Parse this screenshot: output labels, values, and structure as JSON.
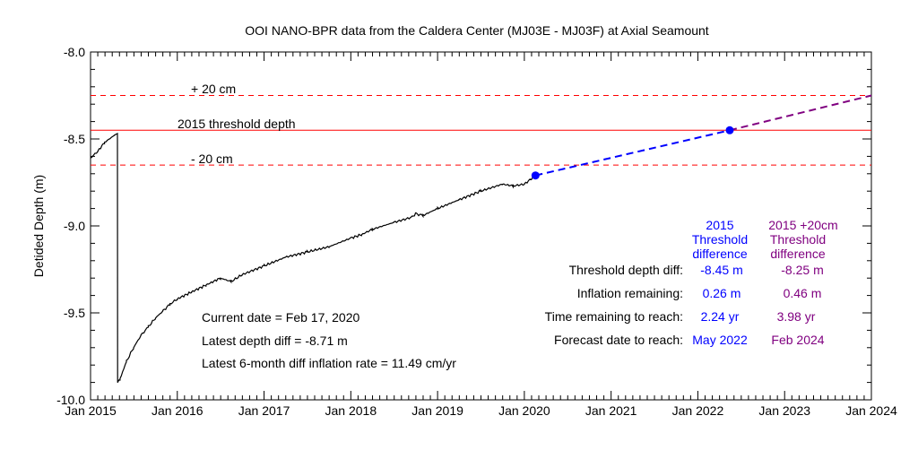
{
  "colors": {
    "data": "#000000",
    "threshold": "#ff0000",
    "forecast_2015": "#0000ff",
    "forecast_plus20": "#800080"
  },
  "chart_data": {
    "type": "line",
    "title": "OOI NANO-BPR data from the Caldera Center (MJ03E - MJ03F) at Axial Seamount",
    "ylabel": "Detided Depth (m)",
    "xlabel": "",
    "xlim": [
      "2015-01-01",
      "2024-01-01"
    ],
    "ylim": [
      -10.0,
      -8.0
    ],
    "y_reversed": false,
    "x_ticks": [
      "Jan 2015",
      "Jan 2016",
      "Jan 2017",
      "Jan 2018",
      "Jan 2019",
      "Jan 2020",
      "Jan 2021",
      "Jan 2022",
      "Jan 2023",
      "Jan 2024"
    ],
    "y_ticks": [
      "-8.0",
      "-8.5",
      "-9.0",
      "-9.5",
      "-10.0"
    ],
    "y_tick_values": [
      -8.0,
      -8.5,
      -9.0,
      -9.5,
      -10.0
    ],
    "grid": false,
    "reference_lines": [
      {
        "y": -8.25,
        "style": "dashed",
        "color": "#ff0000",
        "label": "+ 20 cm"
      },
      {
        "y": -8.45,
        "style": "solid",
        "color": "#ff0000",
        "label": "2015 threshold depth"
      },
      {
        "y": -8.65,
        "style": "dashed",
        "color": "#ff0000",
        "label": "- 20 cm"
      }
    ],
    "series": [
      {
        "color": "#000000",
        "style": "solid",
        "points": [
          [
            "2015-01-01",
            -8.61
          ],
          [
            "2015-02-01",
            -8.57
          ],
          [
            "2015-03-01",
            -8.52
          ],
          [
            "2015-04-10",
            -8.48
          ],
          [
            "2015-04-24",
            -8.47
          ],
          [
            "2015-04-25",
            -9.9
          ],
          [
            "2015-05-05",
            -9.88
          ],
          [
            "2015-06-01",
            -9.78
          ],
          [
            "2015-07-01",
            -9.7
          ],
          [
            "2015-08-01",
            -9.63
          ],
          [
            "2015-09-01",
            -9.58
          ],
          [
            "2015-10-01",
            -9.53
          ],
          [
            "2015-11-01",
            -9.49
          ],
          [
            "2015-12-01",
            -9.45
          ],
          [
            "2016-01-01",
            -9.42
          ],
          [
            "2016-03-01",
            -9.38
          ],
          [
            "2016-05-01",
            -9.34
          ],
          [
            "2016-07-01",
            -9.3
          ],
          [
            "2016-08-15",
            -9.32
          ],
          [
            "2016-10-01",
            -9.28
          ],
          [
            "2017-01-01",
            -9.23
          ],
          [
            "2017-04-01",
            -9.18
          ],
          [
            "2017-07-01",
            -9.15
          ],
          [
            "2017-10-01",
            -9.12
          ],
          [
            "2018-01-01",
            -9.07
          ],
          [
            "2018-02-15",
            -9.05
          ],
          [
            "2018-04-01",
            -9.02
          ],
          [
            "2018-07-01",
            -8.98
          ],
          [
            "2018-09-15",
            -8.95
          ],
          [
            "2018-10-01",
            -8.93
          ],
          [
            "2018-11-01",
            -8.94
          ],
          [
            "2019-01-01",
            -8.9
          ],
          [
            "2019-04-01",
            -8.85
          ],
          [
            "2019-07-01",
            -8.8
          ],
          [
            "2019-10-01",
            -8.76
          ],
          [
            "2019-11-15",
            -8.77
          ],
          [
            "2020-01-01",
            -8.76
          ],
          [
            "2020-02-17",
            -8.71
          ]
        ]
      },
      {
        "color": "#0000ff",
        "style": "dashed",
        "points": [
          [
            "2020-02-17",
            -8.71
          ],
          [
            "2022-05-15",
            -8.45
          ]
        ]
      },
      {
        "color": "#800080",
        "style": "dashed",
        "points": [
          [
            "2022-05-15",
            -8.45
          ],
          [
            "2024-01-01",
            -8.25
          ]
        ]
      }
    ],
    "markers": [
      {
        "x": "2020-02-17",
        "y": -8.71,
        "color": "#0000ff"
      },
      {
        "x": "2022-05-15",
        "y": -8.45,
        "color": "#0000ff"
      }
    ]
  },
  "annotations": {
    "current_date": "Current date = Feb 17, 2020",
    "latest_depth": "Latest depth diff =   -8.71 m",
    "latest_rate": "Latest 6-month diff inflation rate =  11.49 cm/yr"
  },
  "table": {
    "header_2015": [
      "2015",
      "Threshold",
      "difference"
    ],
    "header_plus20": [
      "2015 +20cm",
      "Threshold",
      "difference"
    ],
    "rows": [
      {
        "label": "Threshold depth diff:",
        "v2015": "-8.45 m",
        "vplus": "-8.25 m"
      },
      {
        "label": "Inflation  remaining:",
        "v2015": "0.26 m",
        "vplus": "0.46 m"
      },
      {
        "label": "Time remaining to reach:",
        "v2015": "2.24 yr",
        "vplus": "3.98 yr"
      },
      {
        "label": "Forecast  date to reach:",
        "v2015": "May 2022",
        "vplus": "Feb 2024"
      }
    ]
  }
}
